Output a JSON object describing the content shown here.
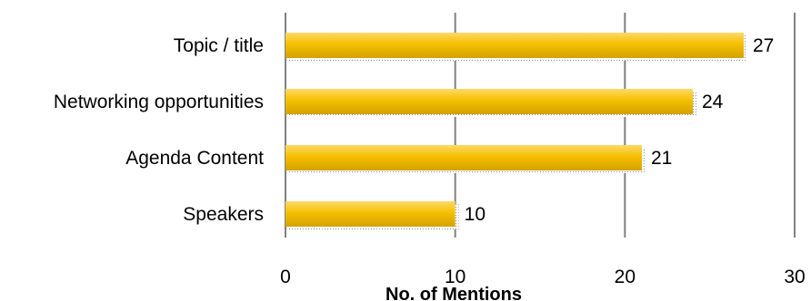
{
  "chart_data": {
    "type": "bar",
    "orientation": "horizontal",
    "title": "",
    "categories": [
      "Topic / title",
      "Networking opportunities",
      "Agenda Content",
      "Speakers"
    ],
    "values": [
      27,
      24,
      21,
      10
    ],
    "xlabel": "No. of Mentions",
    "ylabel": "",
    "xlim": [
      0,
      30
    ],
    "xticks": [
      0,
      10,
      20,
      30
    ],
    "grid": true,
    "legend": "none",
    "data_labels": true
  },
  "colors": {
    "bar_fill_light": "#FFD966",
    "bar_fill": "#F5C000",
    "bar_fill_dark": "#D4A100",
    "gridline": "#808080",
    "shadow": "#8C8C8C"
  }
}
